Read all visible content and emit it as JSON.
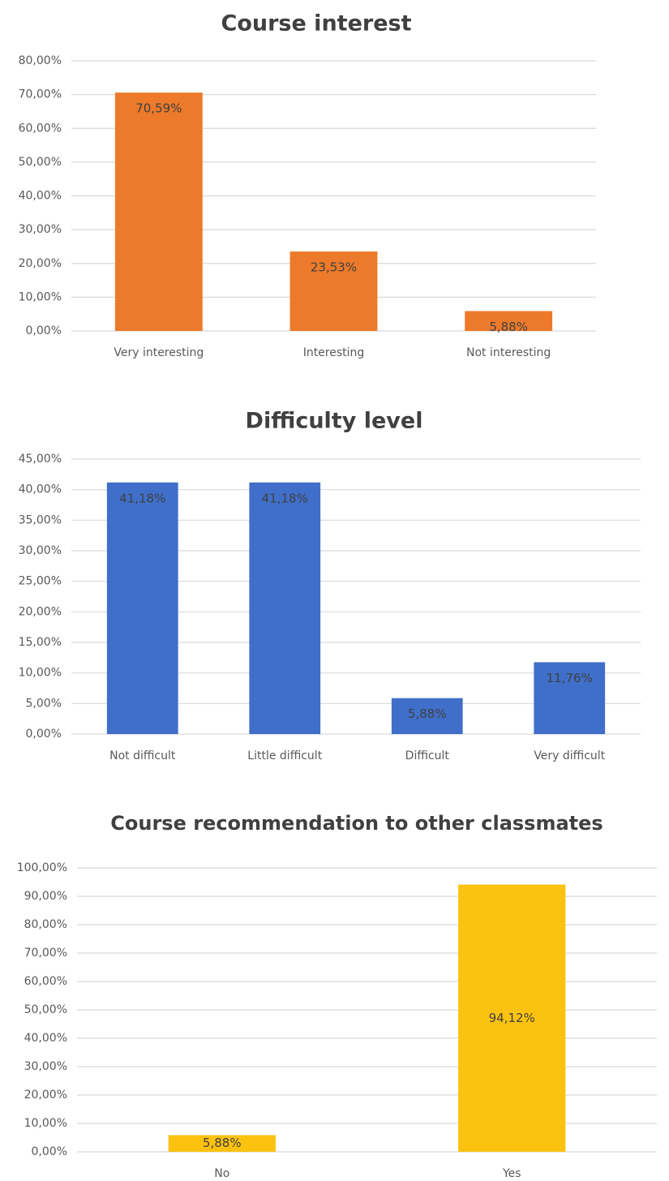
{
  "chart_data": [
    {
      "type": "bar",
      "title": "Course interest",
      "categories": [
        "Very interesting",
        "Interesting",
        "Not interesting"
      ],
      "values": [
        70.59,
        23.53,
        5.88
      ],
      "value_labels": [
        "70,59%",
        "23,53%",
        "5,88%"
      ],
      "color": "#ec7a2a",
      "ylim": [
        0,
        80
      ],
      "yticks": [
        {
          "value": 0,
          "label": "0,00%"
        },
        {
          "value": 10,
          "label": "10,00%"
        },
        {
          "value": 20,
          "label": "20,00%"
        },
        {
          "value": 30,
          "label": "30,00%"
        },
        {
          "value": 40,
          "label": "40,00%"
        },
        {
          "value": 50,
          "label": "50,00%"
        },
        {
          "value": 60,
          "label": "60,00%"
        },
        {
          "value": 70,
          "label": "70,00%"
        },
        {
          "value": 80,
          "label": "80,00%"
        }
      ],
      "grid": true
    },
    {
      "type": "bar",
      "title": "Difficulty level",
      "categories": [
        "Not difficult",
        "Little difficult",
        "Difficult",
        "Very difficult"
      ],
      "values": [
        41.18,
        41.18,
        5.88,
        11.76
      ],
      "value_labels": [
        "41,18%",
        "41,18%",
        "5,88%",
        "11,76%"
      ],
      "color": "#3f6fc9",
      "ylim": [
        0,
        45
      ],
      "yticks": [
        {
          "value": 0,
          "label": "0,00%"
        },
        {
          "value": 5,
          "label": "5,00%"
        },
        {
          "value": 10,
          "label": "10,00%"
        },
        {
          "value": 15,
          "label": "15,00%"
        },
        {
          "value": 20,
          "label": "20,00%"
        },
        {
          "value": 25,
          "label": "25,00%"
        },
        {
          "value": 30,
          "label": "30,00%"
        },
        {
          "value": 35,
          "label": "35,00%"
        },
        {
          "value": 40,
          "label": "40,00%"
        },
        {
          "value": 45,
          "label": "45,00%"
        }
      ],
      "grid": true
    },
    {
      "type": "bar",
      "title": "Course recommendation to other classmates",
      "categories": [
        "No",
        "Yes"
      ],
      "values": [
        5.88,
        94.12
      ],
      "value_labels": [
        "5,88%",
        "94,12%"
      ],
      "color": "#fbc20f",
      "ylim": [
        0,
        100
      ],
      "yticks": [
        {
          "value": 0,
          "label": "0,00%"
        },
        {
          "value": 10,
          "label": "10,00%"
        },
        {
          "value": 20,
          "label": "20,00%"
        },
        {
          "value": 30,
          "label": "30,00%"
        },
        {
          "value": 40,
          "label": "40,00%"
        },
        {
          "value": 50,
          "label": "50,00%"
        },
        {
          "value": 60,
          "label": "60,00%"
        },
        {
          "value": 70,
          "label": "70,00%"
        },
        {
          "value": 80,
          "label": "80,00%"
        },
        {
          "value": 90,
          "label": "90,00%"
        },
        {
          "value": 100,
          "label": "100,00%"
        }
      ],
      "grid": true
    }
  ]
}
